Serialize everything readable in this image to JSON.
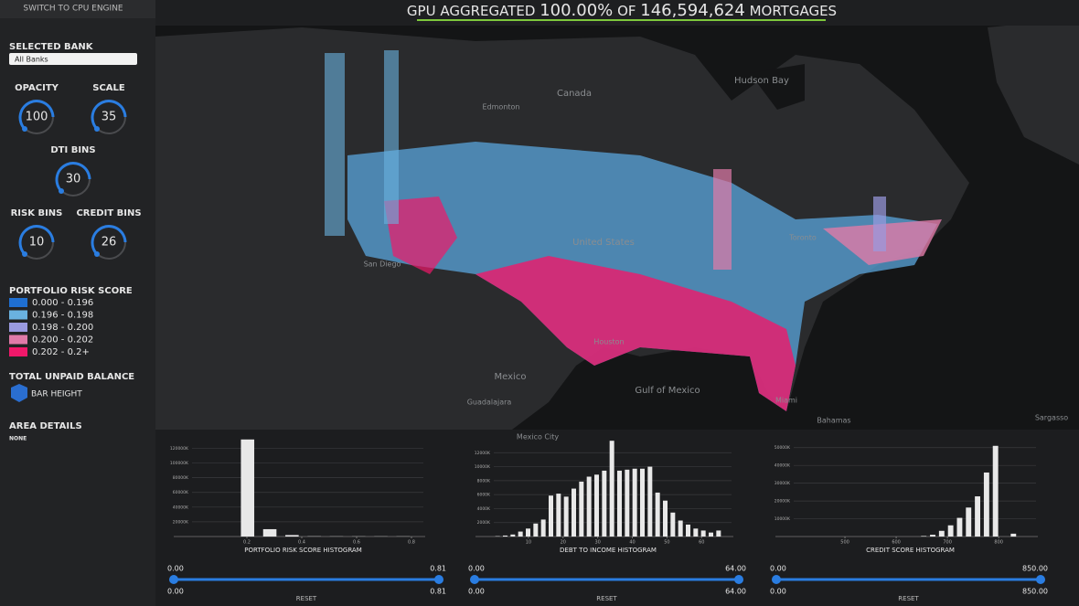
{
  "header": {
    "button": "SWITCH TO CPU ENGINE",
    "prefix": "GPU AGGREGATED",
    "percent": "100.00%",
    "of": "OF",
    "count": "146,594,624",
    "suffix": "MORTGAGES"
  },
  "sidebar": {
    "bank_label": "SELECTED BANK",
    "bank_value": "All Banks",
    "dials": [
      {
        "label": "OPACITY",
        "value": 100
      },
      {
        "label": "SCALE",
        "value": 35
      },
      {
        "label": "DTI BINS",
        "value": 30
      },
      {
        "label": "RISK BINS",
        "value": 10
      },
      {
        "label": "CREDIT BINS",
        "value": 26
      }
    ],
    "legend_title": "PORTFOLIO RISK SCORE",
    "legend": [
      {
        "label": "0.000 - 0.196",
        "color": "#1f6fd1"
      },
      {
        "label": "0.196 - 0.198",
        "color": "#6ab2e0"
      },
      {
        "label": "0.198 - 0.200",
        "color": "#9a9ae0"
      },
      {
        "label": "0.200 - 0.202",
        "color": "#e07aa8"
      },
      {
        "label": "0.202 - 0.2+",
        "color": "#f0186a"
      }
    ],
    "balance_title": "TOTAL UNPAID BALANCE",
    "balance_item": "BAR HEIGHT",
    "area_title": "AREA DETAILS",
    "area_value": "NONE"
  },
  "map": {
    "labels": [
      "Canada",
      "Hudson Bay",
      "United States",
      "Mexico",
      "Gulf of Mexico",
      "Guadalajara",
      "Houston",
      "Miami",
      "Bahamas",
      "Sargasso",
      "Edmonton",
      "San Diego",
      "Toronto",
      "Mexico City"
    ]
  },
  "chart_data": [
    {
      "type": "histogram",
      "title": "PORTFOLIO RISK SCORE HISTOGRAM",
      "color": "#e8e8e8",
      "bins": [
        0,
        0.081,
        0.162,
        0.243,
        0.324,
        0.405,
        0.486,
        0.567,
        0.648,
        0.729,
        0.81
      ],
      "counts": [
        0,
        0,
        132000,
        10000,
        2000,
        300,
        200,
        200,
        200,
        200
      ],
      "xlim": [
        0,
        0.81
      ],
      "ylim": [
        0,
        133000
      ],
      "xticks": [
        0.2,
        0.4,
        0.6,
        0.8
      ],
      "yticks": [
        {
          "value": 20000,
          "label": "20000K"
        },
        {
          "value": 40000,
          "label": "40000K"
        },
        {
          "value": 60000,
          "label": "60000K"
        },
        {
          "value": 80000,
          "label": "80000K"
        },
        {
          "value": 100000,
          "label": "100000K"
        },
        {
          "value": 120000,
          "label": "120000K"
        }
      ]
    },
    {
      "type": "histogram",
      "title": "DEBT TO INCOME HISTOGRAM",
      "color": "#e8e8e8",
      "bins": [
        0,
        2.2,
        4.4,
        6.6,
        8.8,
        11,
        13.2,
        15.4,
        17.6,
        19.8,
        22,
        24.2,
        26.4,
        28.6,
        30.8,
        33,
        35.2,
        37.4,
        39.6,
        41.8,
        44,
        46.2,
        48.4,
        50.6,
        52.8,
        55,
        57.2,
        59.4,
        61.6,
        63.8,
        66
      ],
      "counts": [
        50,
        140,
        290,
        710,
        1140,
        1860,
        2430,
        5860,
        6140,
        5710,
        6860,
        7860,
        8570,
        8860,
        9430,
        13710,
        9430,
        9570,
        9710,
        9710,
        10000,
        6290,
        5140,
        3430,
        2290,
        1710,
        1140,
        860,
        570,
        860
      ],
      "xlim": [
        0,
        66
      ],
      "ylim": [
        0,
        14000
      ],
      "xticks": [
        10,
        20,
        30,
        40,
        50,
        60
      ],
      "yticks": [
        {
          "value": 2000,
          "label": "2000K"
        },
        {
          "value": 4000,
          "label": "4000K"
        },
        {
          "value": 6000,
          "label": "6000K"
        },
        {
          "value": 8000,
          "label": "8000K"
        },
        {
          "value": 10000,
          "label": "10000K"
        },
        {
          "value": 12000,
          "label": "12000K"
        }
      ]
    },
    {
      "type": "histogram",
      "title": "CREDIT SCORE HISTOGRAM",
      "color": "#e8e8e8",
      "bins": [
        400,
        417.5,
        435,
        452.5,
        470,
        487.5,
        505,
        522.5,
        540,
        557.5,
        575,
        592.5,
        610,
        627.5,
        645,
        662.5,
        680,
        697.5,
        715,
        732.5,
        750,
        767.5,
        785,
        802.5,
        820,
        837.5,
        855
      ],
      "counts": [
        0,
        0,
        0,
        0,
        0,
        0,
        0,
        0,
        0,
        0,
        0,
        0,
        0,
        0,
        300,
        1000,
        3200,
        6300,
        10500,
        16300,
        22600,
        36000,
        51000,
        0,
        1600,
        0
      ],
      "xlim": [
        400,
        855
      ],
      "ylim": [
        0,
        55000
      ],
      "xticks": [
        500,
        600,
        700,
        800
      ],
      "yticks": [
        {
          "value": 10000,
          "label": "10000K"
        },
        {
          "value": 20000,
          "label": "20000K"
        },
        {
          "value": 30000,
          "label": "30000K"
        },
        {
          "value": 40000,
          "label": "40000K"
        },
        {
          "value": 50000,
          "label": "50000K"
        }
      ]
    }
  ],
  "sliders": [
    {
      "min": "0.00",
      "max": "0.81",
      "reset": "RESET"
    },
    {
      "min": "0.00",
      "max": "64.00",
      "reset": "RESET"
    },
    {
      "min": "0.00",
      "max": "850.00",
      "reset": "RESET"
    }
  ]
}
